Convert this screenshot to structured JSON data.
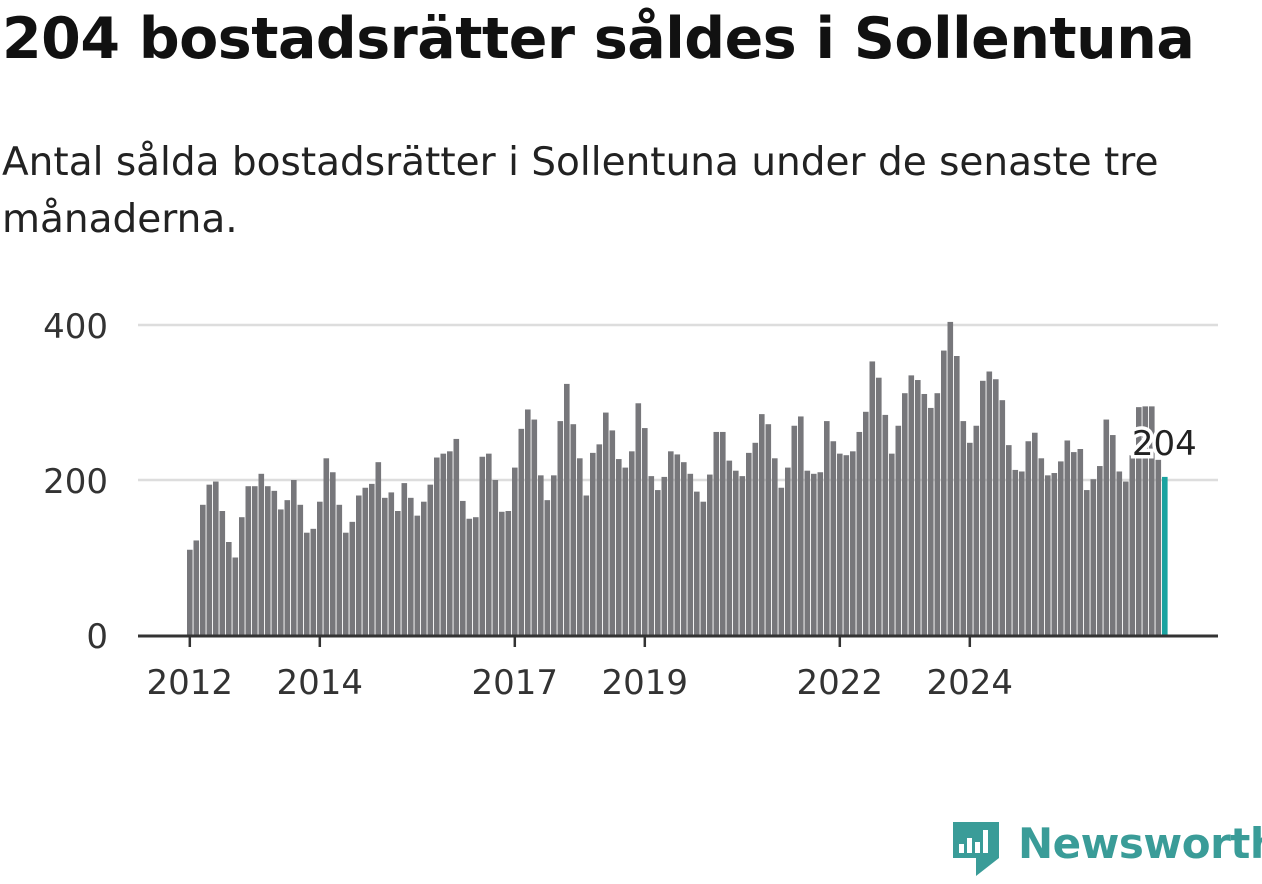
{
  "title": "204 bostadsrätter såldes i Sollentuna",
  "subtitle": "Antal sålda bostadsrätter i Sollentuna under de senaste tre månaderna.",
  "brand": {
    "name": "Newsworthy",
    "icon": "newsworthy-logo-icon",
    "color": "#3a9c98"
  },
  "chart_data": {
    "type": "bar",
    "title": "204 bostadsrätter såldes i Sollentuna",
    "xlabel": "",
    "ylabel": "Antal sålda bostadsrätter",
    "ylim": [
      0,
      400
    ],
    "yticks": [
      0,
      200,
      400
    ],
    "grid": true,
    "bar_color": "#77777b",
    "highlight_color": "#1aa3a0",
    "highlight_label": "204",
    "xtick_labels": [
      {
        "label": "2012",
        "index": 0
      },
      {
        "label": "2014",
        "index": 20
      },
      {
        "label": "2017",
        "index": 50
      },
      {
        "label": "2019",
        "index": 70
      },
      {
        "label": "2022",
        "index": 100
      },
      {
        "label": "2024",
        "index": 120
      }
    ],
    "values": [
      110,
      122,
      168,
      194,
      198,
      160,
      120,
      100,
      152,
      192,
      192,
      208,
      192,
      186,
      162,
      174,
      200,
      168,
      132,
      137,
      172,
      228,
      210,
      168,
      132,
      146,
      180,
      190,
      195,
      223,
      177,
      184,
      160,
      196,
      177,
      154,
      172,
      194,
      229,
      234,
      237,
      253,
      173,
      150,
      152,
      230,
      234,
      200,
      159,
      160,
      216,
      266,
      291,
      278,
      206,
      174,
      206,
      276,
      324,
      272,
      228,
      180,
      235,
      246,
      287,
      264,
      227,
      216,
      237,
      299,
      267,
      205,
      187,
      204,
      237,
      233,
      223,
      208,
      185,
      172,
      207,
      262,
      262,
      225,
      212,
      205,
      235,
      248,
      285,
      272,
      228,
      190,
      216,
      270,
      282,
      212,
      208,
      210,
      276,
      250,
      234,
      232,
      237,
      262,
      288,
      353,
      332,
      284,
      234,
      270,
      312,
      335,
      329,
      311,
      293,
      312,
      367,
      404,
      360,
      276,
      248,
      270,
      328,
      340,
      330,
      303,
      245,
      213,
      211,
      250,
      261,
      228,
      206,
      209,
      224,
      251,
      236,
      240,
      187,
      201,
      218,
      278,
      258,
      211,
      198,
      232,
      294,
      295,
      295,
      226,
      204
    ]
  }
}
